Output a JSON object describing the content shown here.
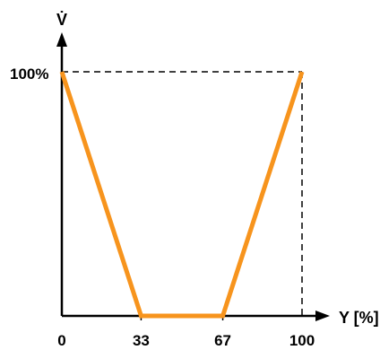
{
  "chart_data": {
    "type": "line",
    "ylabel": "V̇",
    "xlabel": "Y [%]",
    "x_ticks": [
      "0",
      "33",
      "67",
      "100"
    ],
    "y_ticks": [
      "100%"
    ],
    "xlim": [
      0,
      100
    ],
    "ylim": [
      0,
      100
    ],
    "grid": false,
    "series": [
      {
        "x": [
          0,
          33,
          67,
          100
        ],
        "y": [
          100,
          0,
          0,
          100
        ],
        "color": "#F7941D"
      }
    ]
  }
}
